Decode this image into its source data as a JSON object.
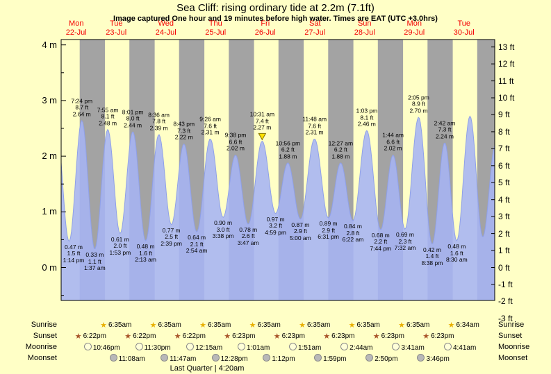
{
  "title": "Sea Cliff: rising ordinary tide at 2.2m (7.1ft)",
  "subtitle": "Image captured One hour and 19 minutes before high water. Times are EAT (UTC +3.0hrs)",
  "days": [
    {
      "name": "Mon",
      "date": "22-Jul"
    },
    {
      "name": "Tue",
      "date": "23-Jul"
    },
    {
      "name": "Wed",
      "date": "24-Jul"
    },
    {
      "name": "Thu",
      "date": "25-Jul"
    },
    {
      "name": "Fri",
      "date": "26-Jul"
    },
    {
      "name": "Sat",
      "date": "27-Jul"
    },
    {
      "name": "Sun",
      "date": "28-Jul"
    },
    {
      "name": "Mon",
      "date": "29-Jul"
    },
    {
      "name": "Tue",
      "date": "30-Jul"
    }
  ],
  "colors": {
    "background": "#ffffc6",
    "night": "#a3a3a3",
    "tide": "#a6b4f4",
    "tideEdge": "#8fa0e8",
    "dayLabel": "#f40000",
    "sunriseStar": "#e8b000",
    "sunsetStar": "#a85428",
    "moonriseFill": "#ffffd8",
    "moonsetFill": "#b8b8b8",
    "marker": "#ffdf00"
  },
  "chart_data": {
    "type": "area",
    "title": "Sea Cliff: rising ordinary tide at 2.2m (7.1ft)",
    "y_axis_left": {
      "unit": "m",
      "ticks": [
        4,
        3,
        2,
        1,
        0
      ]
    },
    "y_axis_right": {
      "unit": "ft",
      "ticks": [
        13,
        12,
        11,
        10,
        9,
        8,
        7,
        6,
        5,
        4,
        3,
        2,
        1,
        0,
        -1,
        -2,
        -3
      ]
    },
    "tide_events": [
      {
        "day": 0,
        "time": "6:55 am",
        "m": 2.6,
        "type": "high",
        "show": false
      },
      {
        "day": 0,
        "time": "1:14 pm",
        "m": 0.47,
        "ft": 1.5,
        "type": "low",
        "show": true
      },
      {
        "day": 0,
        "time": "7:24 pm",
        "m": 2.64,
        "ft": 8.7,
        "type": "high",
        "show": true
      },
      {
        "day": 1,
        "time": "1:37 am",
        "m": 0.33,
        "ft": 1.1,
        "type": "low",
        "show": true
      },
      {
        "day": 1,
        "time": "7:55 am",
        "m": 2.48,
        "ft": 8.1,
        "type": "high",
        "show": true
      },
      {
        "day": 1,
        "time": "1:53 pm",
        "m": 0.61,
        "ft": 2.0,
        "type": "low",
        "show": true
      },
      {
        "day": 1,
        "time": "8:01 pm",
        "m": 2.44,
        "ft": 8.0,
        "type": "high",
        "show": true
      },
      {
        "day": 2,
        "time": "2:13 am",
        "m": 0.48,
        "ft": 1.6,
        "type": "low",
        "show": true
      },
      {
        "day": 2,
        "time": "8:36 am",
        "m": 2.39,
        "ft": 7.8,
        "type": "high",
        "show": true
      },
      {
        "day": 2,
        "time": "2:39 pm",
        "m": 0.77,
        "ft": 2.5,
        "type": "low",
        "show": true
      },
      {
        "day": 2,
        "time": "8:43 pm",
        "m": 2.22,
        "ft": 7.3,
        "type": "high",
        "show": true
      },
      {
        "day": 3,
        "time": "2:54 am",
        "m": 0.64,
        "ft": 2.1,
        "type": "low",
        "show": true
      },
      {
        "day": 3,
        "time": "9:26 am",
        "m": 2.31,
        "ft": 7.6,
        "type": "high",
        "show": true
      },
      {
        "day": 3,
        "time": "3:38 pm",
        "m": 0.9,
        "ft": 3.0,
        "type": "low",
        "show": true
      },
      {
        "day": 3,
        "time": "9:38 pm",
        "m": 2.02,
        "ft": 6.6,
        "type": "high",
        "show": true
      },
      {
        "day": 4,
        "time": "3:47 am",
        "m": 0.78,
        "ft": 2.6,
        "type": "low",
        "show": true
      },
      {
        "day": 4,
        "time": "10:31 am",
        "m": 2.27,
        "ft": 7.4,
        "type": "high",
        "show": true,
        "current": true
      },
      {
        "day": 4,
        "time": "4:59 pm",
        "m": 0.97,
        "ft": 3.2,
        "type": "low",
        "show": true
      },
      {
        "day": 4,
        "time": "10:56 pm",
        "m": 1.88,
        "ft": 6.2,
        "type": "high",
        "show": true
      },
      {
        "day": 5,
        "time": "5:00 am",
        "m": 0.87,
        "ft": 2.9,
        "type": "low",
        "show": true
      },
      {
        "day": 5,
        "time": "11:48 am",
        "m": 2.31,
        "ft": 7.6,
        "type": "high",
        "show": true
      },
      {
        "day": 5,
        "time": "6:31 pm",
        "m": 0.89,
        "ft": 2.9,
        "type": "low",
        "show": true
      },
      {
        "day": 6,
        "time": "12:27 am",
        "m": 1.88,
        "ft": 6.2,
        "type": "high",
        "show": true
      },
      {
        "day": 6,
        "time": "6:22 am",
        "m": 0.84,
        "ft": 2.8,
        "type": "low",
        "show": true
      },
      {
        "day": 6,
        "time": "1:03 pm",
        "m": 2.46,
        "ft": 8.1,
        "type": "high",
        "show": true
      },
      {
        "day": 6,
        "time": "7:44 pm",
        "m": 0.68,
        "ft": 2.2,
        "type": "low",
        "show": true
      },
      {
        "day": 7,
        "time": "1:44 am",
        "m": 2.02,
        "ft": 6.6,
        "type": "high",
        "show": true
      },
      {
        "day": 7,
        "time": "7:32 am",
        "m": 0.69,
        "ft": 2.3,
        "type": "low",
        "show": true
      },
      {
        "day": 7,
        "time": "2:05 pm",
        "m": 2.7,
        "ft": 8.9,
        "type": "high",
        "show": true
      },
      {
        "day": 7,
        "time": "8:38 pm",
        "m": 0.42,
        "ft": 1.4,
        "type": "low",
        "show": true
      },
      {
        "day": 8,
        "time": "2:42 am",
        "m": 2.24,
        "ft": 7.3,
        "type": "high",
        "show": true
      },
      {
        "day": 8,
        "time": "8:30 am",
        "m": 0.48,
        "ft": 1.6,
        "type": "low",
        "show": true
      },
      {
        "day": 8,
        "time": "2:55 pm",
        "m": 2.72,
        "type": "high",
        "show": false
      },
      {
        "day": 8,
        "time": "9:05 pm",
        "m": 0.55,
        "type": "low",
        "show": false
      },
      {
        "day": 9,
        "time": "3:10 am",
        "m": 2.2,
        "type": "high",
        "show": false
      }
    ]
  },
  "astro": {
    "rows": [
      {
        "key": "sunrise",
        "label": "Sunrise",
        "icon": "sunrise-star",
        "entries": [
          {
            "day": 1,
            "time": "6:35am"
          },
          {
            "day": 2,
            "time": "6:35am"
          },
          {
            "day": 3,
            "time": "6:35am"
          },
          {
            "day": 4,
            "time": "6:35am"
          },
          {
            "day": 5,
            "time": "6:35am"
          },
          {
            "day": 6,
            "time": "6:35am"
          },
          {
            "day": 7,
            "time": "6:35am"
          },
          {
            "day": 8,
            "time": "6:34am"
          }
        ]
      },
      {
        "key": "sunset",
        "label": "Sunset",
        "icon": "sunset-star",
        "entries": [
          {
            "day": 0,
            "time": "6:22pm"
          },
          {
            "day": 1,
            "time": "6:22pm"
          },
          {
            "day": 2,
            "time": "6:22pm"
          },
          {
            "day": 3,
            "time": "6:23pm"
          },
          {
            "day": 4,
            "time": "6:23pm"
          },
          {
            "day": 5,
            "time": "6:23pm"
          },
          {
            "day": 6,
            "time": "6:23pm"
          },
          {
            "day": 7,
            "time": "6:23pm"
          }
        ]
      },
      {
        "key": "moonrise",
        "label": "Moonrise",
        "icon": "moonrise-moon",
        "entries": [
          {
            "day": 0,
            "time": "10:46pm"
          },
          {
            "day": 1,
            "time": "11:30pm"
          },
          {
            "day": 3,
            "time": "12:15am"
          },
          {
            "day": 4,
            "time": "1:01am"
          },
          {
            "day": 5,
            "time": "1:51am"
          },
          {
            "day": 6,
            "time": "2:44am"
          },
          {
            "day": 7,
            "time": "3:41am"
          },
          {
            "day": 8,
            "time": "4:41am"
          }
        ]
      },
      {
        "key": "moonset",
        "label": "Moonset",
        "icon": "moonset-moon",
        "entries": [
          {
            "day": 1,
            "time": "11:08am"
          },
          {
            "day": 2,
            "time": "11:47am"
          },
          {
            "day": 3,
            "time": "12:28pm"
          },
          {
            "day": 4,
            "time": "1:12pm"
          },
          {
            "day": 5,
            "time": "1:59pm"
          },
          {
            "day": 6,
            "time": "2:50pm"
          },
          {
            "day": 7,
            "time": "3:46pm"
          }
        ]
      }
    ],
    "footer": "Last Quarter | 4:20am"
  }
}
